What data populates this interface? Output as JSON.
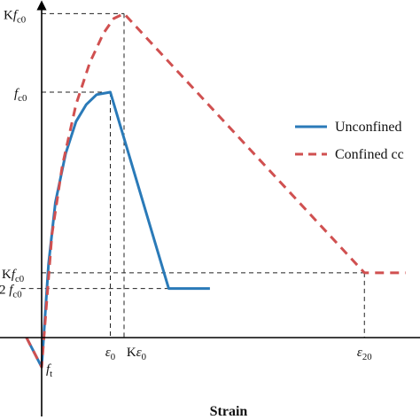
{
  "chart_data": {
    "type": "line",
    "title": "",
    "xlabel": "Strain",
    "ylabel": "",
    "grid": false,
    "legend_position": "right",
    "colors": {
      "unconfined": "#2a7ab8",
      "confined": "#d05050",
      "guides": "#222222",
      "axes": "#000000"
    },
    "x_ticks": [
      {
        "key": "e0",
        "base": "ε",
        "sub": "0",
        "prefix": "",
        "x": 1.0
      },
      {
        "key": "ke0",
        "base": "ε",
        "sub": "0",
        "prefix": "K",
        "x": 1.2
      },
      {
        "key": "e20",
        "base": "ε",
        "sub": "20",
        "prefix": "",
        "x": 4.7
      }
    ],
    "y_ticks": [
      {
        "key": "kfc0",
        "prefix": "K",
        "base": "f",
        "sub": "c0",
        "y": 1.32
      },
      {
        "key": "fc0",
        "prefix": "",
        "base": "f",
        "sub": "c0",
        "y": 1.0
      },
      {
        "key": "kfc0_r",
        "prefix": "K",
        "base": "f",
        "sub": "c0",
        "y": 0.264
      },
      {
        "key": "fc0_r",
        "prefix": "2 ",
        "base": "f",
        "sub": "c0",
        "y": 0.2
      }
    ],
    "annotations": [
      {
        "key": "ft",
        "base": "f",
        "sub": "t",
        "x": 0.0,
        "y": -0.12
      }
    ],
    "series": [
      {
        "name": "Unconfined",
        "color": "#2a7ab8",
        "dash": false,
        "points": [
          [
            -0.22,
            0.0
          ],
          [
            0.0,
            -0.12
          ],
          [
            0.1,
            0.3
          ],
          [
            0.2,
            0.55
          ],
          [
            0.35,
            0.75
          ],
          [
            0.5,
            0.88
          ],
          [
            0.65,
            0.95
          ],
          [
            0.8,
            0.99
          ],
          [
            1.0,
            1.0
          ],
          [
            1.85,
            0.2
          ],
          [
            2.45,
            0.2
          ]
        ]
      },
      {
        "name": "Confined cc",
        "color": "#d05050",
        "dash": true,
        "points": [
          [
            -0.22,
            0.0
          ],
          [
            0.0,
            -0.12
          ],
          [
            0.15,
            0.42
          ],
          [
            0.3,
            0.7
          ],
          [
            0.5,
            0.95
          ],
          [
            0.7,
            1.12
          ],
          [
            0.9,
            1.24
          ],
          [
            1.05,
            1.3
          ],
          [
            1.2,
            1.32
          ],
          [
            4.7,
            0.264
          ],
          [
            5.3,
            0.264
          ]
        ]
      }
    ],
    "xlim": [
      -0.3,
      5.3
    ],
    "ylim": [
      -0.3,
      1.45
    ]
  }
}
